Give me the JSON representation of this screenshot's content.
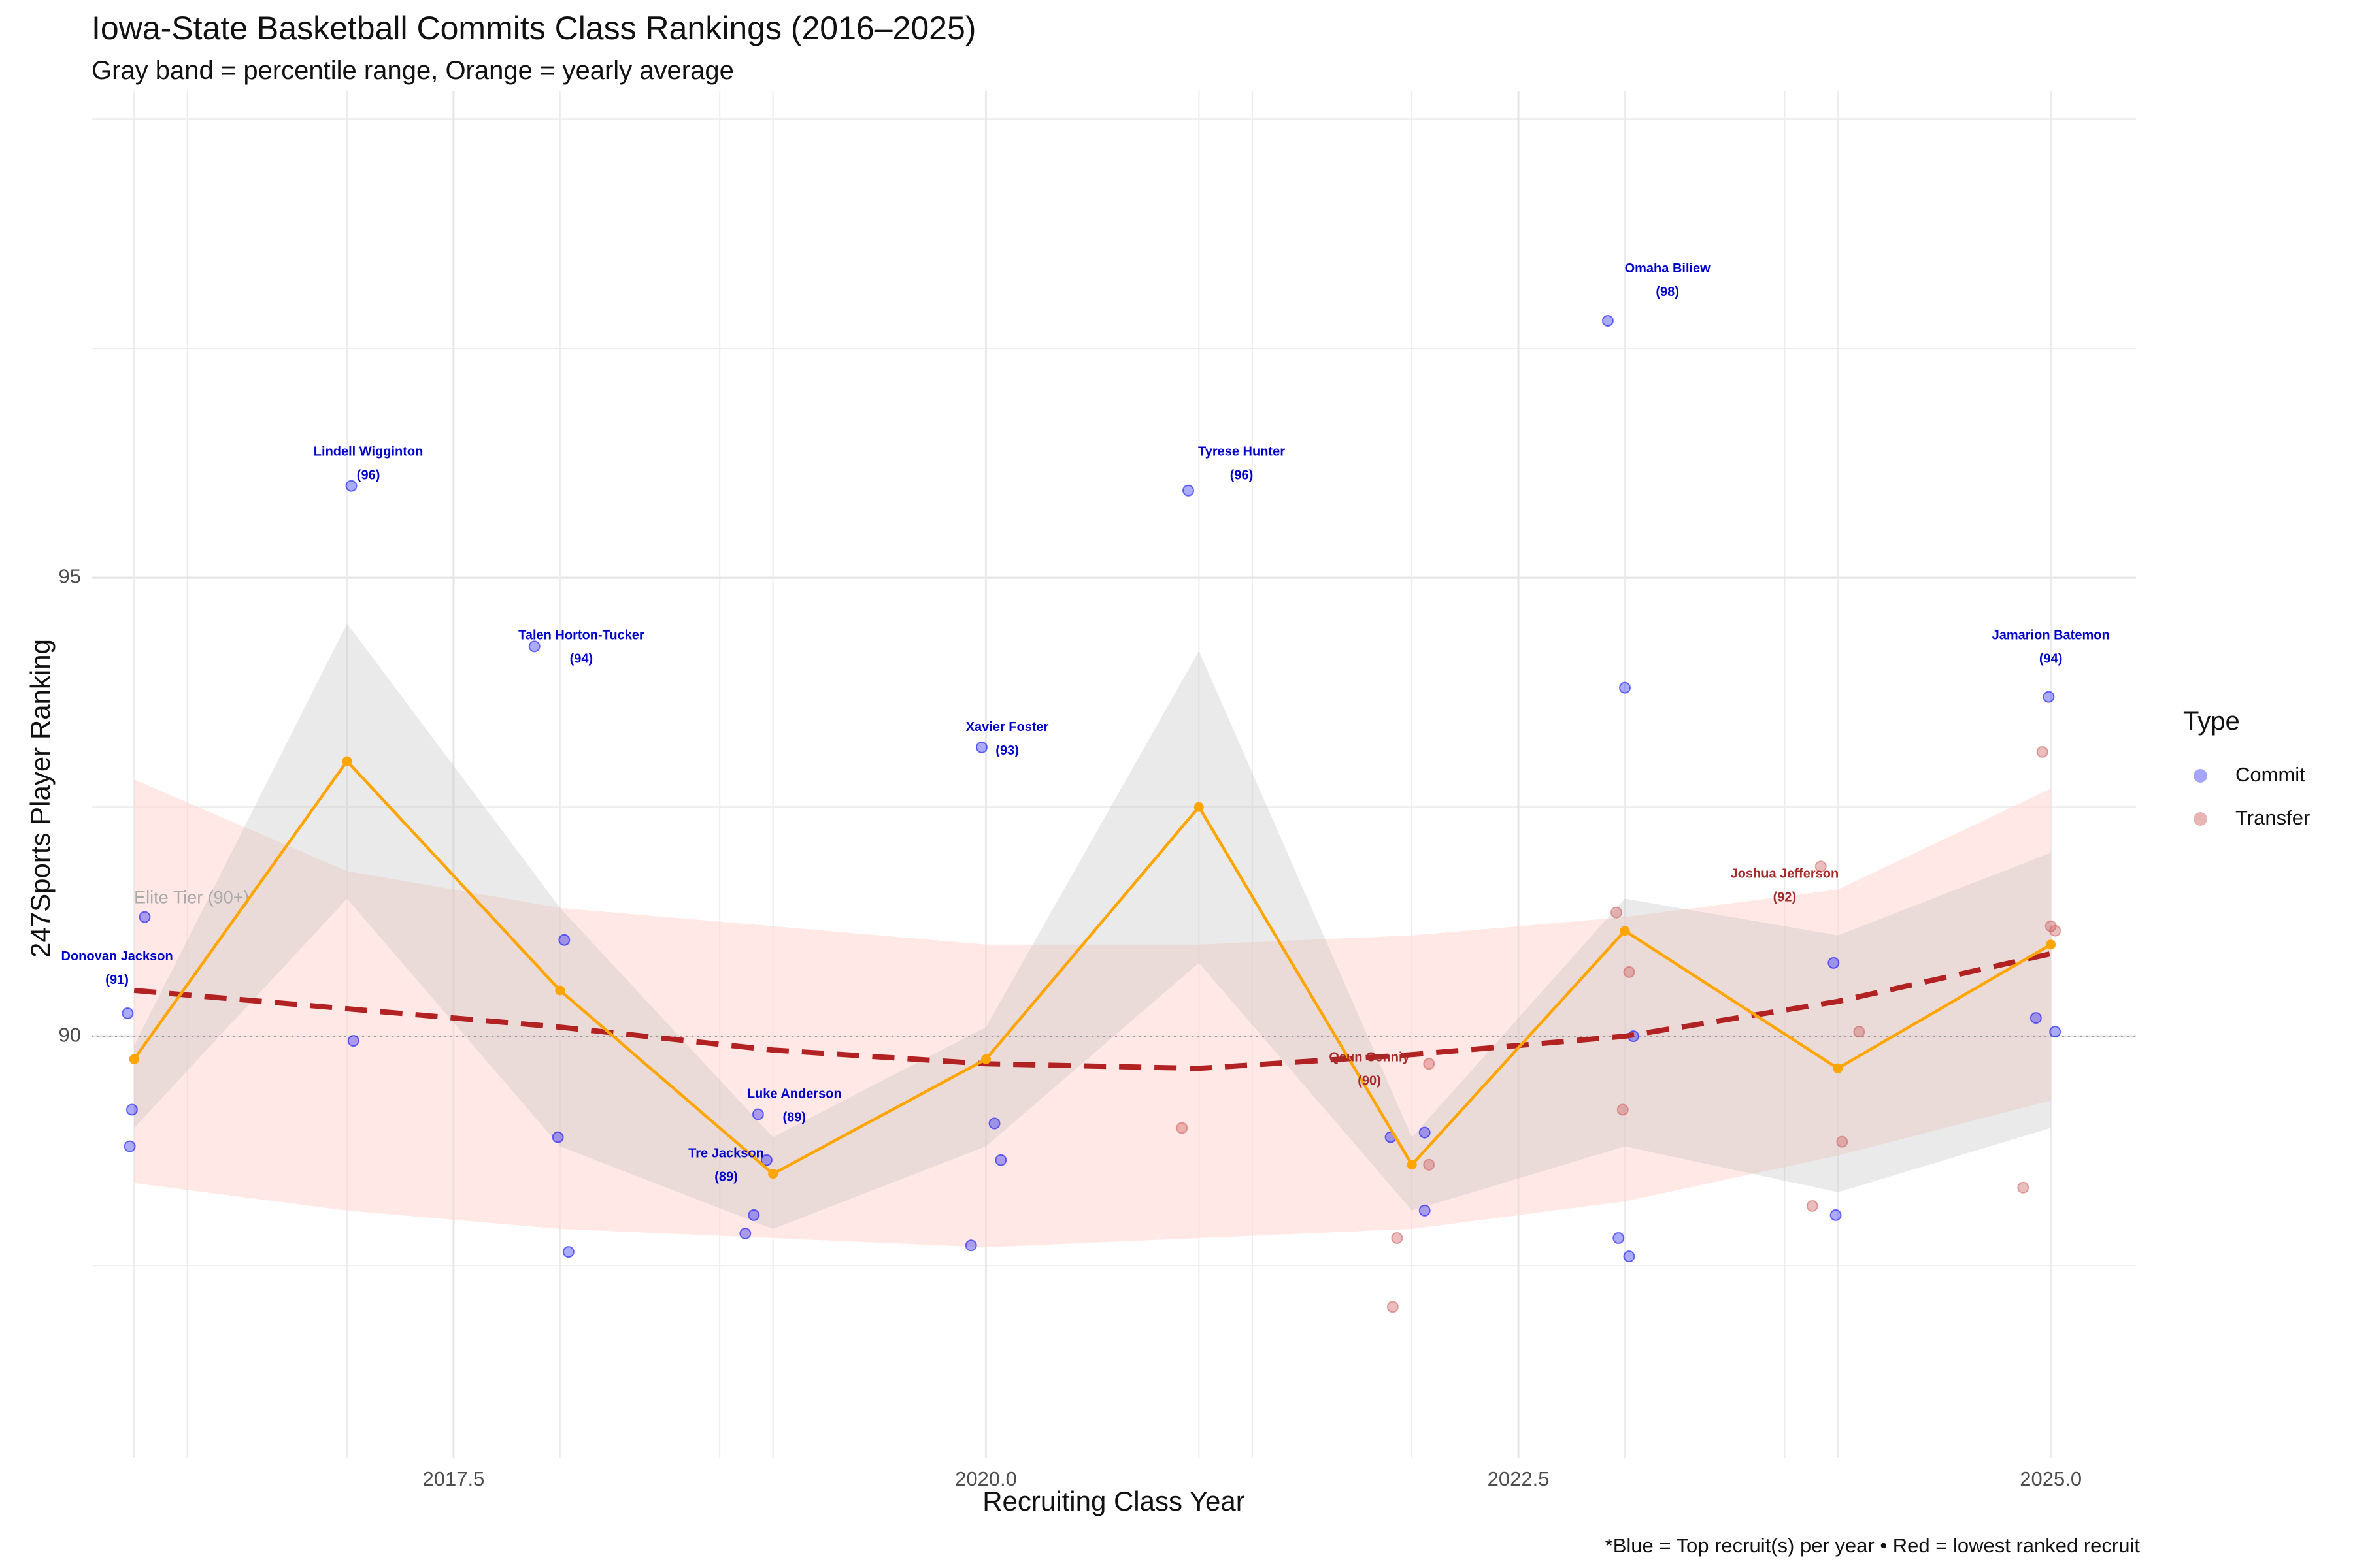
{
  "title": "Iowa-State Basketball Commits Class Rankings (2016–2025)",
  "subtitle": "Gray band = percentile range, Orange = yearly average",
  "caption": "*Blue = Top recruit(s) per year • Red = lowest ranked recruit",
  "legend": {
    "title": "Type",
    "items": [
      {
        "label": "Commit",
        "color": "#0000ff"
      },
      {
        "label": "Transfer",
        "color": "#cd5c5c"
      }
    ]
  },
  "colors": {
    "commit": "#0000ff",
    "transfer": "#cd5c5c",
    "average_line": "#ffa500",
    "trend_line": "#b22222",
    "percentile_band": "#bebebe",
    "trend_band": "#ffd6d0",
    "label_top": "#0000cd",
    "label_low": "#a52a2a",
    "reference_line": "#999999",
    "reference_label": "#aaaaaa"
  },
  "chart_data": {
    "type": "scatter",
    "xlabel": "Recruiting Class Year",
    "ylabel": "247Sports Player Ranking",
    "xlim": [
      2015.8,
      2025.4
    ],
    "ylim": [
      85.4,
      100.3
    ],
    "x_ticks": [
      2017.5,
      2020.0,
      2022.5,
      2025.0
    ],
    "x_tick_labels": [
      "2017.5",
      "2020.0",
      "2022.5",
      "2025.0"
    ],
    "y_ticks": [
      90,
      95
    ],
    "y_tick_labels": [
      "90",
      "95"
    ],
    "grid": true,
    "legend_position": "right",
    "reference_line": {
      "y": 90,
      "label": "Elite Tier (90+)",
      "label_x": 2016,
      "label_y": 91.5
    },
    "percentile_band": {
      "x": [
        2016,
        2017,
        2018,
        2019,
        2020,
        2021,
        2022,
        2023,
        2024,
        2025
      ],
      "low": [
        89.0,
        91.5,
        88.8,
        87.9,
        88.8,
        90.8,
        88.1,
        88.8,
        88.3,
        89.0
      ],
      "high": [
        89.9,
        94.5,
        91.4,
        88.9,
        90.1,
        94.2,
        88.9,
        91.5,
        91.1,
        92.0
      ]
    },
    "yearly_average": {
      "x": [
        2016,
        2017,
        2018,
        2019,
        2020,
        2021,
        2022,
        2023,
        2024,
        2025
      ],
      "y": [
        89.75,
        93.0,
        90.5,
        88.5,
        89.75,
        92.5,
        88.6,
        91.15,
        89.65,
        91.0
      ]
    },
    "trend": {
      "x": [
        2016,
        2017,
        2018,
        2019,
        2020,
        2021,
        2022,
        2023,
        2024,
        2025
      ],
      "y": [
        90.5,
        90.3,
        90.1,
        89.85,
        89.7,
        89.65,
        89.8,
        90.0,
        90.38,
        90.9
      ],
      "low": [
        88.4,
        88.1,
        87.9,
        87.8,
        87.7,
        87.8,
        87.9,
        88.2,
        88.7,
        89.3
      ],
      "high": [
        92.8,
        91.8,
        91.4,
        91.2,
        91.0,
        91.0,
        91.1,
        91.3,
        91.6,
        92.7
      ]
    },
    "series": [
      {
        "name": "Commit",
        "points": [
          {
            "x": 2015.97,
            "y": 90.25
          },
          {
            "x": 2016.05,
            "y": 91.3
          },
          {
            "x": 2015.99,
            "y": 89.2
          },
          {
            "x": 2015.98,
            "y": 88.8
          },
          {
            "x": 2017.02,
            "y": 96.0
          },
          {
            "x": 2017.03,
            "y": 89.95
          },
          {
            "x": 2017.88,
            "y": 94.25
          },
          {
            "x": 2018.02,
            "y": 91.05
          },
          {
            "x": 2017.99,
            "y": 88.9
          },
          {
            "x": 2018.04,
            "y": 87.65
          },
          {
            "x": 2018.93,
            "y": 89.15
          },
          {
            "x": 2018.97,
            "y": 88.65
          },
          {
            "x": 2018.91,
            "y": 88.05
          },
          {
            "x": 2018.87,
            "y": 87.85
          },
          {
            "x": 2019.98,
            "y": 93.15
          },
          {
            "x": 2020.04,
            "y": 89.05
          },
          {
            "x": 2020.07,
            "y": 88.65
          },
          {
            "x": 2019.93,
            "y": 87.72
          },
          {
            "x": 2020.95,
            "y": 95.95
          },
          {
            "x": 2021.9,
            "y": 88.9
          },
          {
            "x": 2022.06,
            "y": 88.95
          },
          {
            "x": 2022.06,
            "y": 88.1
          },
          {
            "x": 2022.92,
            "y": 97.8
          },
          {
            "x": 2023.0,
            "y": 93.8
          },
          {
            "x": 2023.04,
            "y": 90.0
          },
          {
            "x": 2022.97,
            "y": 87.8
          },
          {
            "x": 2023.02,
            "y": 87.6
          },
          {
            "x": 2023.98,
            "y": 90.8
          },
          {
            "x": 2023.99,
            "y": 88.05
          },
          {
            "x": 2024.93,
            "y": 90.2
          },
          {
            "x": 2024.99,
            "y": 93.7
          },
          {
            "x": 2025.02,
            "y": 90.05
          }
        ]
      },
      {
        "name": "Transfer",
        "points": [
          {
            "x": 2020.92,
            "y": 89.0
          },
          {
            "x": 2021.91,
            "y": 87.05
          },
          {
            "x": 2021.93,
            "y": 87.8
          },
          {
            "x": 2022.08,
            "y": 89.7
          },
          {
            "x": 2022.08,
            "y": 88.6
          },
          {
            "x": 2022.96,
            "y": 91.35
          },
          {
            "x": 2023.02,
            "y": 90.7
          },
          {
            "x": 2022.99,
            "y": 89.2
          },
          {
            "x": 2023.88,
            "y": 88.15
          },
          {
            "x": 2023.92,
            "y": 91.85
          },
          {
            "x": 2024.02,
            "y": 88.85
          },
          {
            "x": 2024.1,
            "y": 90.05
          },
          {
            "x": 2024.87,
            "y": 88.35
          },
          {
            "x": 2024.96,
            "y": 93.1
          },
          {
            "x": 2025.0,
            "y": 91.2
          },
          {
            "x": 2025.02,
            "y": 91.15
          }
        ]
      }
    ],
    "annotations": [
      {
        "name": "Donovan Jackson",
        "value": "(91)",
        "x": 2015.92,
        "y": 90.7,
        "kind": "top"
      },
      {
        "name": "Lindell Wigginton",
        "value": "(96)",
        "x": 2017.1,
        "y": 96.2,
        "kind": "top"
      },
      {
        "name": "Talen Horton-Tucker",
        "value": "(94)",
        "x": 2018.1,
        "y": 94.2,
        "kind": "top"
      },
      {
        "name": "Luke Anderson",
        "value": "(89)",
        "x": 2019.1,
        "y": 89.2,
        "kind": "top"
      },
      {
        "name": "Tre Jackson",
        "value": "(89)",
        "x": 2018.78,
        "y": 88.55,
        "kind": "top"
      },
      {
        "name": "Xavier Foster",
        "value": "(93)",
        "x": 2020.1,
        "y": 93.2,
        "kind": "top"
      },
      {
        "name": "Tyrese Hunter",
        "value": "(96)",
        "x": 2021.2,
        "y": 96.2,
        "kind": "top"
      },
      {
        "name": "Omaha Biliew",
        "value": "(98)",
        "x": 2023.2,
        "y": 98.2,
        "kind": "top"
      },
      {
        "name": "Jamarion Batemon",
        "value": "(94)",
        "x": 2025.0,
        "y": 94.2,
        "kind": "top"
      },
      {
        "name": "Qeun Cenniy",
        "value": "(90)",
        "x": 2021.8,
        "y": 89.6,
        "kind": "low"
      },
      {
        "name": "Joshua Jefferson",
        "value": "(92)",
        "x": 2023.75,
        "y": 91.6,
        "kind": "low"
      }
    ]
  }
}
